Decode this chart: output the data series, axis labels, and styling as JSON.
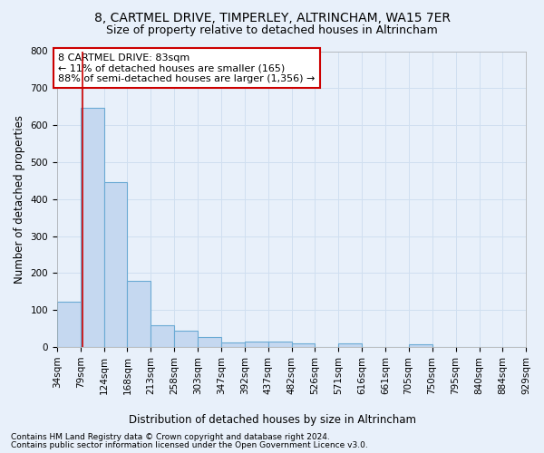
{
  "title1": "8, CARTMEL DRIVE, TIMPERLEY, ALTRINCHAM, WA15 7ER",
  "title2": "Size of property relative to detached houses in Altrincham",
  "xlabel": "Distribution of detached houses by size in Altrincham",
  "ylabel": "Number of detached properties",
  "bin_edges": [
    34,
    79,
    124,
    168,
    213,
    258,
    303,
    347,
    392,
    437,
    482,
    526,
    571,
    616,
    661,
    705,
    750,
    795,
    840,
    884,
    929
  ],
  "bar_values": [
    122,
    648,
    446,
    179,
    60,
    45,
    27,
    12,
    14,
    15,
    10,
    0,
    9,
    0,
    0,
    8,
    0,
    0,
    0,
    0
  ],
  "bar_color": "#c5d8f0",
  "bar_edge_color": "#6aaad4",
  "bar_linewidth": 0.8,
  "property_line_x": 83,
  "property_line_color": "#cc0000",
  "ylim": [
    0,
    800
  ],
  "yticks": [
    0,
    100,
    200,
    300,
    400,
    500,
    600,
    700,
    800
  ],
  "xtick_labels": [
    "34sqm",
    "79sqm",
    "124sqm",
    "168sqm",
    "213sqm",
    "258sqm",
    "303sqm",
    "347sqm",
    "392sqm",
    "437sqm",
    "482sqm",
    "526sqm",
    "571sqm",
    "616sqm",
    "661sqm",
    "705sqm",
    "750sqm",
    "795sqm",
    "840sqm",
    "884sqm",
    "929sqm"
  ],
  "annotation_text": "8 CARTMEL DRIVE: 83sqm\n← 11% of detached houses are smaller (165)\n88% of semi-detached houses are larger (1,356) →",
  "annotation_box_color": "#ffffff",
  "annotation_box_edge_color": "#cc0000",
  "grid_color": "#d0dff0",
  "bg_color": "#e8f0fa",
  "footnote1": "Contains HM Land Registry data © Crown copyright and database right 2024.",
  "footnote2": "Contains public sector information licensed under the Open Government Licence v3.0.",
  "title1_fontsize": 10,
  "title2_fontsize": 9,
  "axis_label_fontsize": 8.5,
  "tick_fontsize": 7.5,
  "annotation_fontsize": 8,
  "footnote_fontsize": 6.5
}
